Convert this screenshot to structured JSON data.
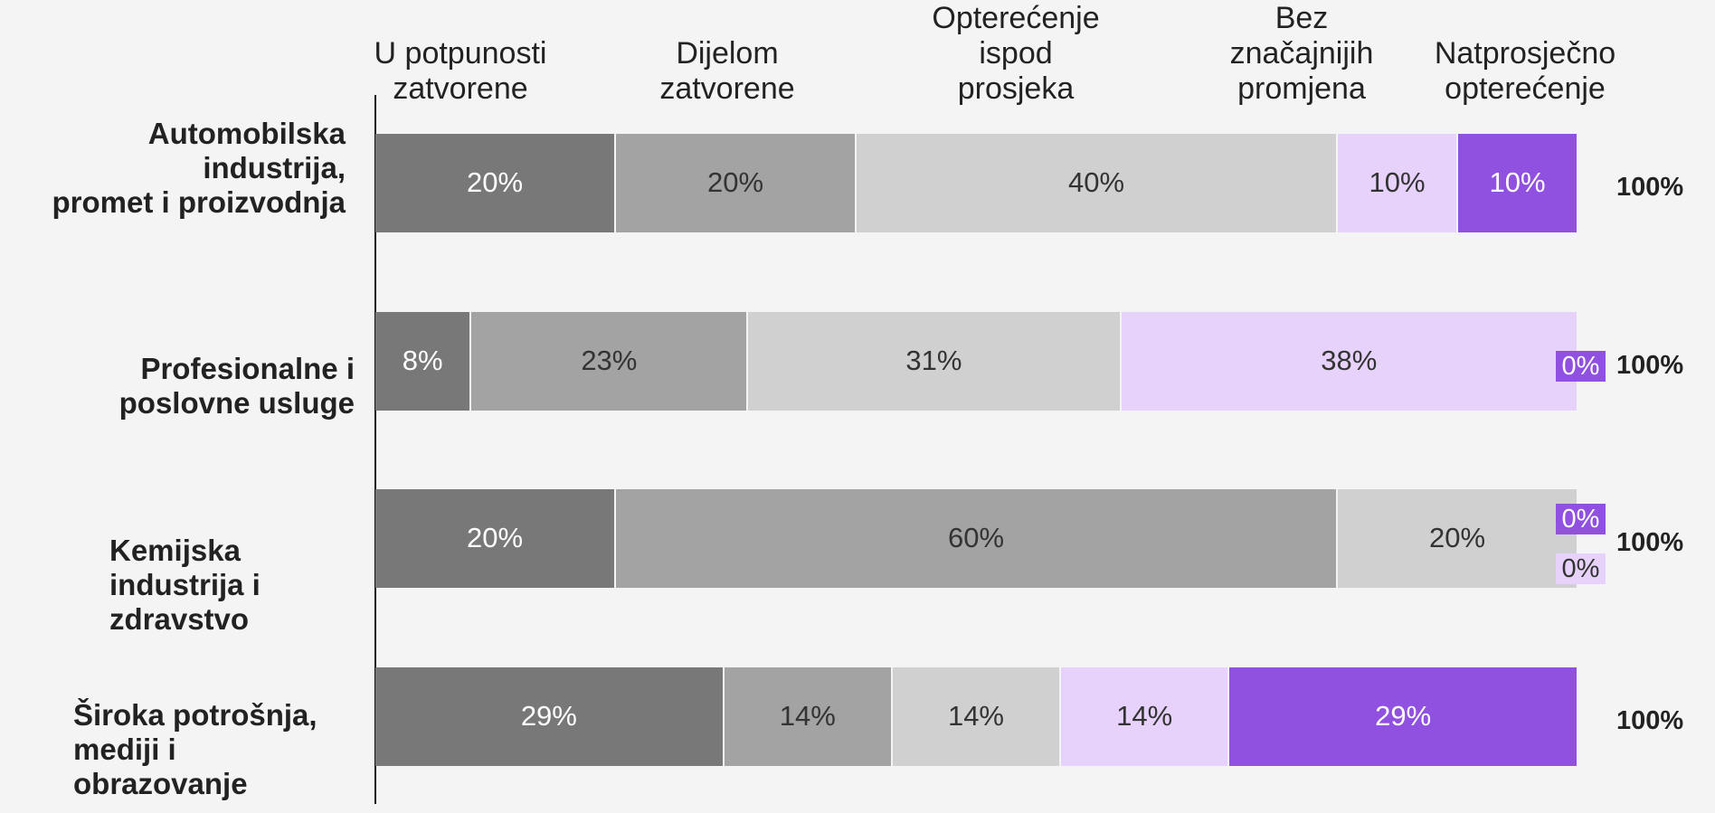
{
  "chart_data": {
    "type": "stacked-bar-horizontal",
    "categories": [
      "Automobilska\nindustrija,\npromet i proizvodnja",
      "Profesionalne i\nposlovne usluge",
      "Kemijska\nindustrija i\nzdravstvo",
      "Široka potrošnja,\nmediji i\nobrazovanje"
    ],
    "series": [
      {
        "name": "U potpunosti\nzatvorene",
        "color": "#787878",
        "label_color": "#ffffff",
        "values": [
          20,
          8,
          20,
          29
        ],
        "value_labels": [
          "20%",
          "8%",
          "20%",
          "29%"
        ]
      },
      {
        "name": "Dijelom\nzatvorene",
        "color": "#a3a3a3",
        "label_color": "#333333",
        "values": [
          20,
          23,
          60,
          14
        ],
        "value_labels": [
          "20%",
          "23%",
          "60%",
          "14%"
        ]
      },
      {
        "name": "Opterećenje\nispod\nprosjeka",
        "color": "#d0d0d0",
        "label_color": "#333333",
        "values": [
          40,
          31,
          20,
          14
        ],
        "value_labels": [
          "40%",
          "31%",
          "20%",
          "14%"
        ]
      },
      {
        "name": "Bez\nznačajnijih\npromjena",
        "color": "#e6d2fa",
        "label_color": "#333333",
        "values": [
          10,
          38,
          0,
          14
        ],
        "value_labels": [
          "10%",
          "38%",
          "0%",
          "14%"
        ]
      },
      {
        "name": "Natprosječno\nopterećenje",
        "color": "#9050e0",
        "label_color": "#ffffff",
        "values": [
          10,
          0,
          0,
          29
        ],
        "value_labels": [
          "10%",
          "0%",
          "0%",
          "29%"
        ]
      }
    ],
    "totals": [
      100,
      100,
      100,
      100
    ],
    "total_labels": [
      "100%",
      "100%",
      "100%",
      "100%"
    ],
    "xlim": [
      0,
      100
    ]
  }
}
